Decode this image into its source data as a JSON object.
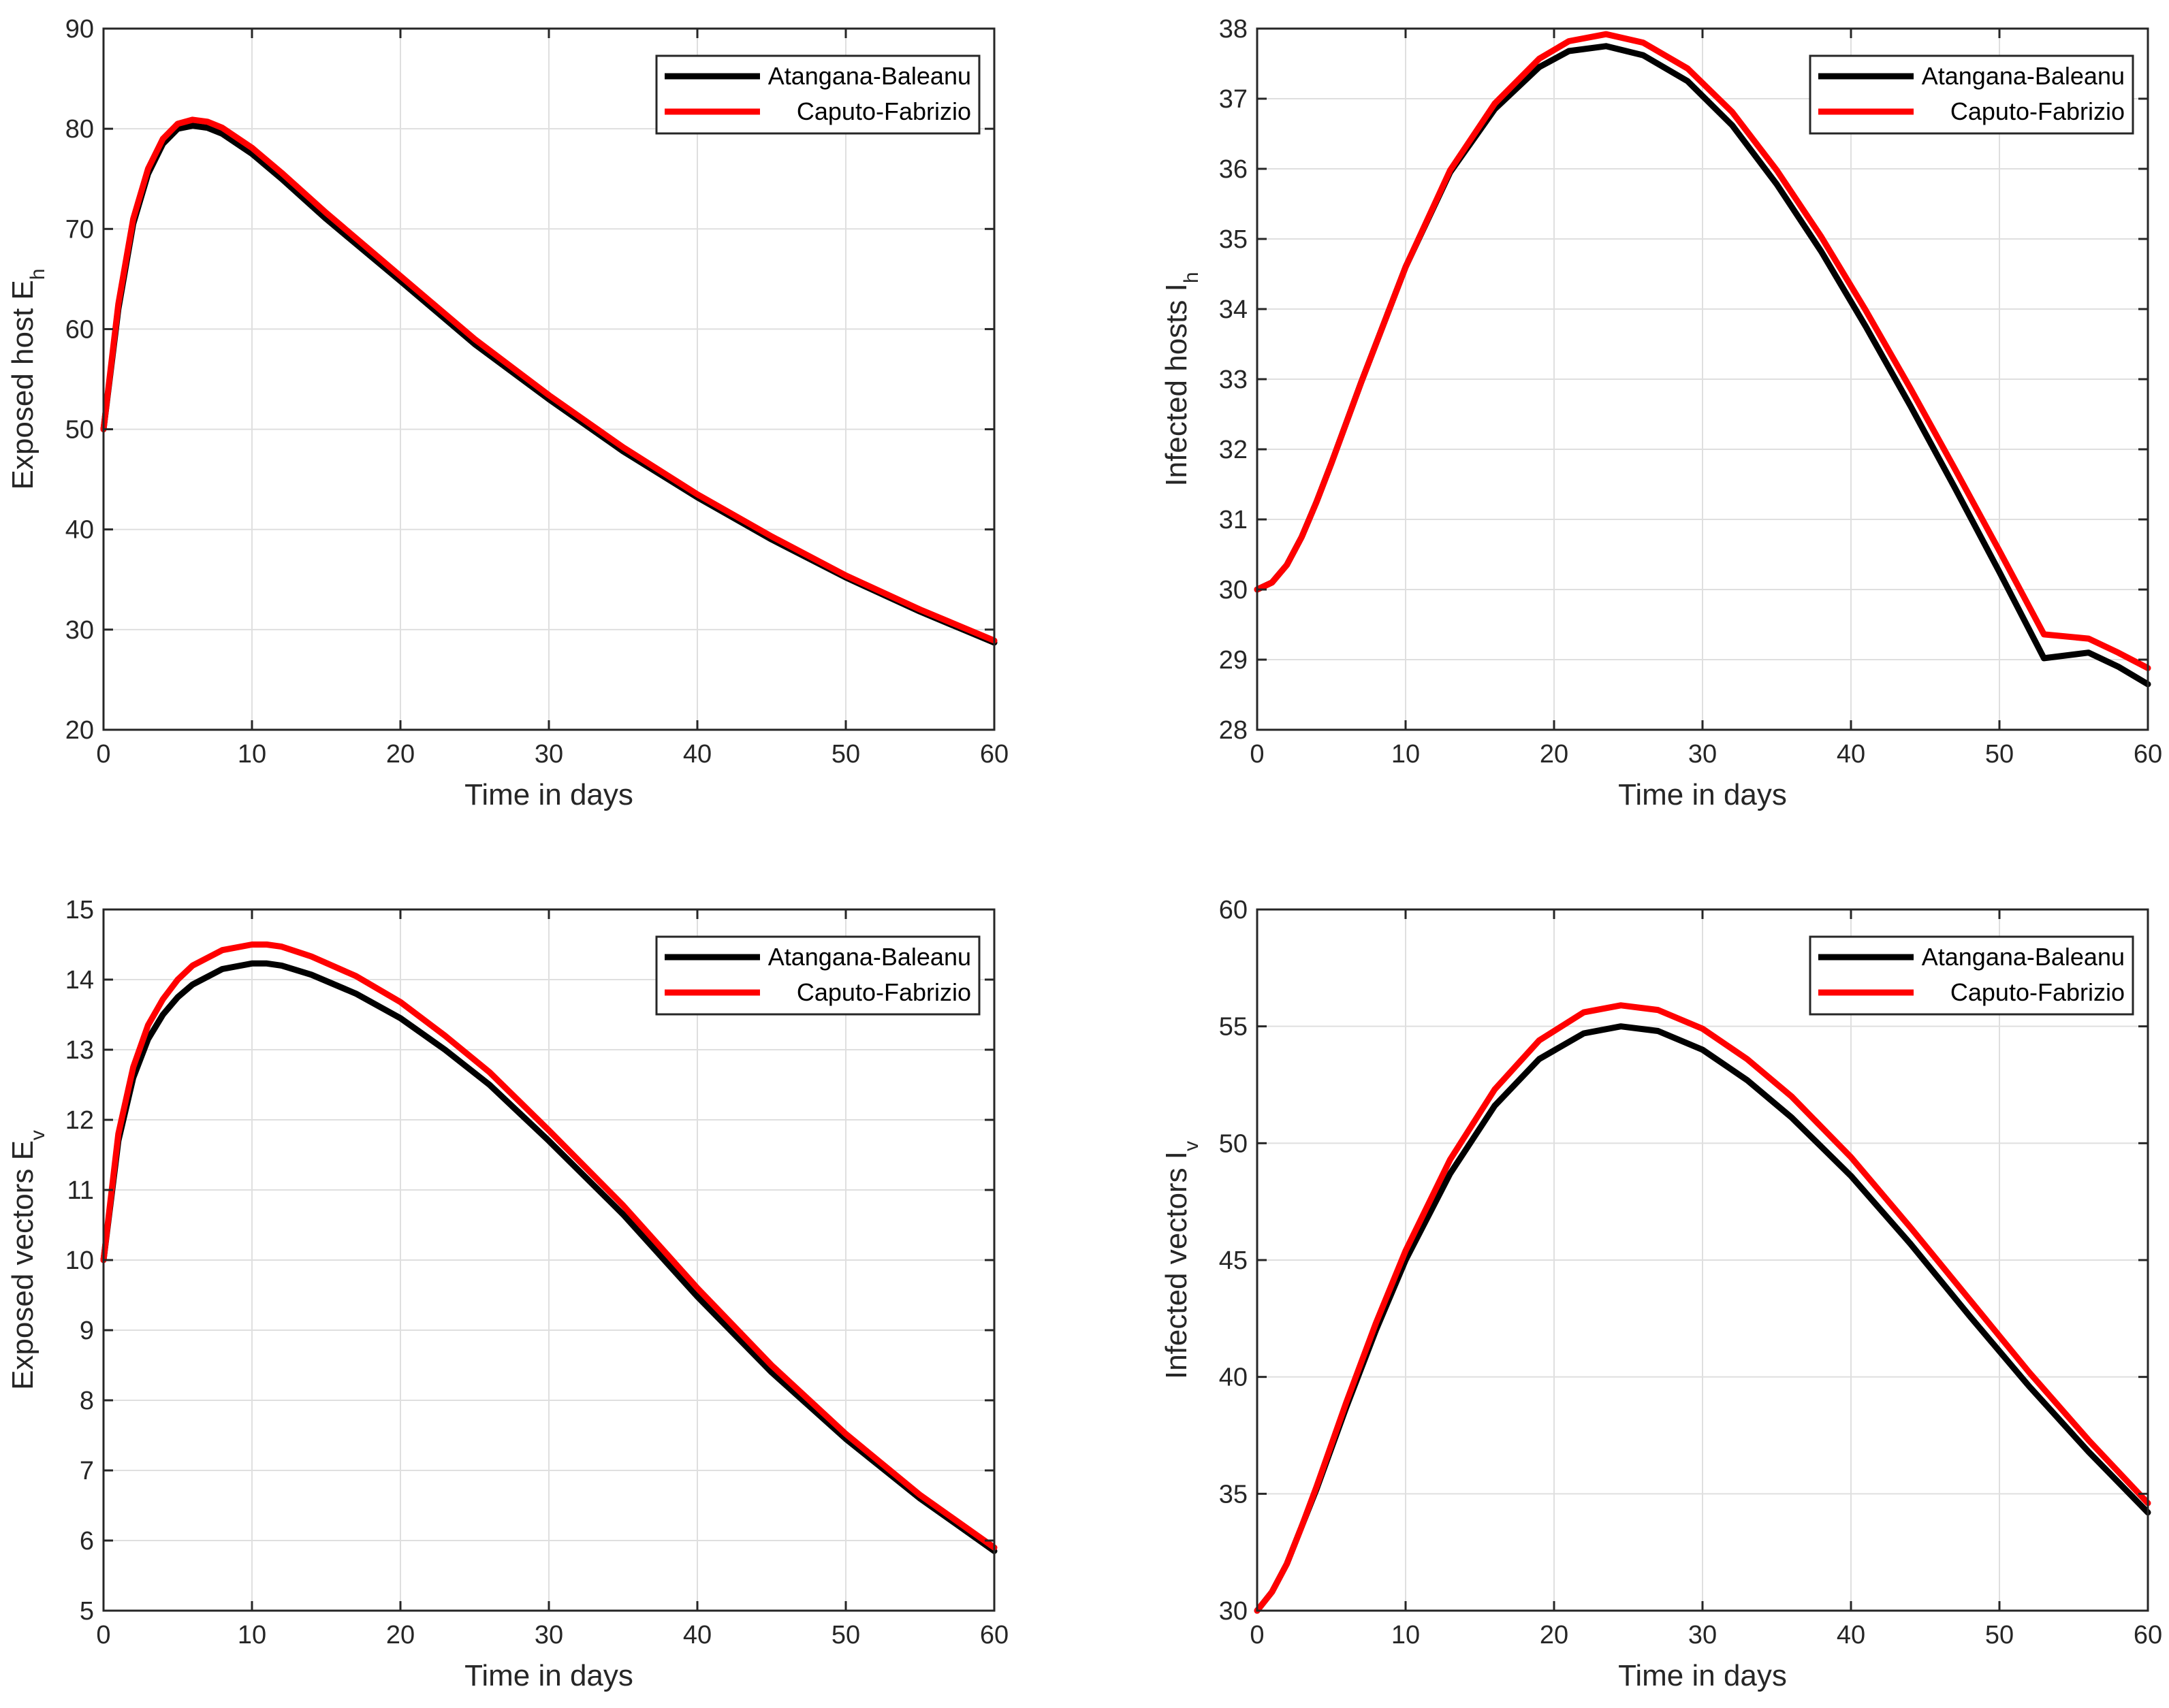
{
  "chart_data": [
    {
      "type": "line",
      "id": "exposed-host",
      "xlabel": "Time in days",
      "ylabel": "Exposed host E",
      "ylabel_sub": "h",
      "xlim": [
        0,
        60
      ],
      "ylim": [
        20,
        90
      ],
      "xticks": [
        0,
        10,
        20,
        30,
        40,
        50,
        60
      ],
      "yticks": [
        20,
        30,
        40,
        50,
        60,
        70,
        80,
        90
      ],
      "grid": true,
      "legend_position": "top-right",
      "x": [
        0,
        1,
        2,
        3,
        4,
        5,
        6,
        7,
        8,
        10,
        12,
        15,
        20,
        25,
        30,
        35,
        40,
        45,
        50,
        55,
        60
      ],
      "series": [
        {
          "name": "Atangana-Baleanu",
          "color": "#000000",
          "values": [
            50,
            62,
            70.5,
            75.5,
            78.5,
            80,
            80.3,
            80.1,
            79.5,
            77.5,
            75,
            71,
            64.8,
            58.5,
            53,
            47.8,
            43.2,
            39,
            35.2,
            31.8,
            28.7
          ]
        },
        {
          "name": "Caputo-Fabrizio",
          "color": "#ff0000",
          "values": [
            50,
            62.5,
            71,
            76,
            79,
            80.5,
            80.9,
            80.7,
            80.1,
            78.1,
            75.6,
            71.6,
            65.3,
            59,
            53.4,
            48.2,
            43.5,
            39.3,
            35.4,
            32,
            28.9
          ]
        }
      ]
    },
    {
      "type": "line",
      "id": "infected-hosts",
      "xlabel": "Time in days",
      "ylabel": "Infected  hosts I",
      "ylabel_sub": "h",
      "xlim": [
        0,
        60
      ],
      "ylim": [
        28,
        38
      ],
      "xticks": [
        0,
        10,
        20,
        30,
        40,
        50,
        60
      ],
      "yticks": [
        28,
        29,
        30,
        31,
        32,
        33,
        34,
        35,
        36,
        37,
        38
      ],
      "grid": true,
      "legend_position": "top-right",
      "x": [
        0,
        1,
        2,
        3,
        4,
        5,
        7,
        10,
        13,
        16,
        19,
        21,
        23.5,
        26,
        29,
        32,
        35,
        38,
        41,
        44,
        47,
        50,
        53,
        56,
        58,
        60
      ],
      "series": [
        {
          "name": "Atangana-Baleanu",
          "color": "#000000",
          "values": [
            30,
            30.1,
            30.35,
            30.75,
            31.25,
            31.8,
            32.95,
            34.6,
            35.95,
            36.85,
            37.45,
            37.68,
            37.75,
            37.62,
            37.25,
            36.62,
            35.78,
            34.82,
            33.75,
            32.62,
            31.45,
            30.25,
            29.02,
            29.1,
            28.9,
            28.65
          ]
        },
        {
          "name": "Caputo-Fabrizio",
          "color": "#ff0000",
          "values": [
            30,
            30.1,
            30.35,
            30.75,
            31.25,
            31.8,
            32.95,
            34.6,
            35.98,
            36.93,
            37.57,
            37.82,
            37.92,
            37.8,
            37.43,
            36.81,
            35.98,
            35.03,
            33.98,
            32.87,
            31.72,
            30.55,
            29.36,
            29.3,
            29.1,
            28.88
          ]
        }
      ]
    },
    {
      "type": "line",
      "id": "exposed-vectors",
      "xlabel": "Time in days",
      "ylabel": "Exposed vectors E",
      "ylabel_sub": "v",
      "xlim": [
        0,
        60
      ],
      "ylim": [
        5,
        15
      ],
      "xticks": [
        0,
        10,
        20,
        30,
        40,
        50,
        60
      ],
      "yticks": [
        5,
        6,
        7,
        8,
        9,
        10,
        11,
        12,
        13,
        14,
        15
      ],
      "grid": true,
      "legend_position": "top-right",
      "x": [
        0,
        1,
        2,
        3,
        4,
        5,
        6,
        8,
        10,
        11,
        12,
        14,
        17,
        20,
        23,
        26,
        30,
        35,
        40,
        45,
        50,
        55,
        60
      ],
      "series": [
        {
          "name": "Atangana-Baleanu",
          "color": "#000000",
          "values": [
            10,
            11.7,
            12.6,
            13.15,
            13.5,
            13.75,
            13.93,
            14.15,
            14.23,
            14.23,
            14.2,
            14.07,
            13.8,
            13.45,
            13,
            12.5,
            11.7,
            10.65,
            9.48,
            8.4,
            7.45,
            6.6,
            5.85
          ]
        },
        {
          "name": "Caputo-Fabrizio",
          "color": "#ff0000",
          "values": [
            10,
            11.8,
            12.75,
            13.35,
            13.72,
            14,
            14.2,
            14.42,
            14.5,
            14.5,
            14.47,
            14.33,
            14.05,
            13.68,
            13.2,
            12.68,
            11.85,
            10.78,
            9.6,
            8.5,
            7.52,
            6.65,
            5.9
          ]
        }
      ]
    },
    {
      "type": "line",
      "id": "infected-vectors",
      "xlabel": "Time in days",
      "ylabel": "Infected vectors I",
      "ylabel_sub": "v",
      "xlim": [
        0,
        60
      ],
      "ylim": [
        30,
        60
      ],
      "xticks": [
        0,
        10,
        20,
        30,
        40,
        50,
        60
      ],
      "yticks": [
        30,
        35,
        40,
        45,
        50,
        55,
        60
      ],
      "grid": true,
      "legend_position": "top-right",
      "x": [
        0,
        1,
        2,
        3,
        4,
        6,
        8,
        10,
        13,
        16,
        19,
        22,
        24.5,
        27,
        30,
        33,
        36,
        40,
        44,
        48,
        52,
        56,
        60
      ],
      "series": [
        {
          "name": "Atangana-Baleanu",
          "color": "#000000",
          "values": [
            30,
            30.8,
            32,
            33.6,
            35.2,
            38.7,
            42,
            45,
            48.7,
            51.6,
            53.6,
            54.7,
            55,
            54.8,
            54,
            52.7,
            51.1,
            48.6,
            45.7,
            42.6,
            39.6,
            36.8,
            34.2
          ]
        },
        {
          "name": "Caputo-Fabrizio",
          "color": "#ff0000",
          "values": [
            30,
            30.8,
            32,
            33.6,
            35.3,
            38.9,
            42.3,
            45.4,
            49.3,
            52.3,
            54.4,
            55.6,
            55.9,
            55.7,
            54.9,
            53.6,
            52,
            49.4,
            46.4,
            43.3,
            40.2,
            37.3,
            34.6
          ]
        }
      ]
    }
  ]
}
